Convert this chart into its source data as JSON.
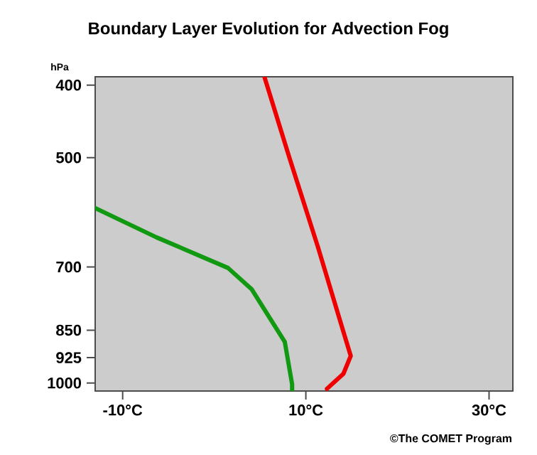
{
  "chart_data": {
    "type": "line",
    "title": "Boundary Layer Evolution for Advection Fog",
    "ylabel": "hPa",
    "annotations": [
      "©The COMET Program"
    ],
    "log": "y",
    "marker": "none",
    "line_style": "solid",
    "xlim": [
      -13,
      32.6
    ],
    "ylim": [
      1025,
      390
    ],
    "xticks": [
      {
        "value": -10,
        "label": "-10°C"
      },
      {
        "value": 10,
        "label": "10°C"
      },
      {
        "value": 30,
        "label": "30°C"
      }
    ],
    "yticks": [
      400,
      500,
      700,
      850,
      925,
      1000
    ],
    "series": [
      {
        "color": "#ee0000",
        "x": [
          5.5,
          8.2,
          11.3,
          14.1,
          14.9,
          14.1,
          12.3
        ],
        "values": [
          391,
          500,
          657,
          854,
          920,
          972,
          1018
        ]
      },
      {
        "color": "#119911",
        "x": [
          -13,
          -6.3,
          1.5,
          4.1,
          7.7,
          8.5,
          8.5
        ],
        "values": [
          584,
          639,
          702,
          750,
          881,
          1004,
          1022
        ]
      }
    ]
  }
}
